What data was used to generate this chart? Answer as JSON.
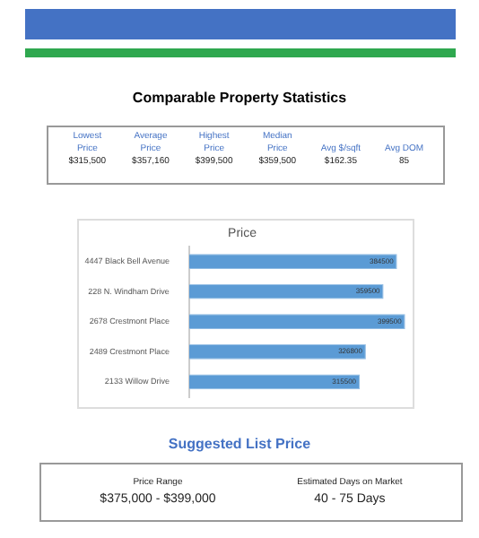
{
  "chart_data": [
    {
      "type": "other",
      "title": "Comparable Property Statistics",
      "annotations": [
        "Lowest Price",
        "$315,500",
        "Average Price",
        "$357,160",
        "Highest Price",
        "$399,500",
        "Median Price",
        "$359,500",
        "Avg $/sqft",
        "$162.35",
        "Avg DOM",
        "85"
      ]
    },
    {
      "type": "bar",
      "orientation": "horizontal",
      "title": "Price",
      "categories": [
        "4447 Black Bell Avenue",
        "228 N. Windham Drive",
        "2678 Crestmont Place",
        "2489 Crestmont Place",
        "2133 Willow Drive"
      ],
      "values": [
        384500,
        359500,
        399500,
        326800,
        315500
      ],
      "color": "#5b9bd5",
      "data_labels": true,
      "legend": false
    },
    {
      "type": "other",
      "title": "Suggested List Price",
      "annotations": [
        "Price Range",
        "$375,000 - $399,000",
        "Estimated Days on Market",
        "40 - 75 Days"
      ]
    }
  ]
}
